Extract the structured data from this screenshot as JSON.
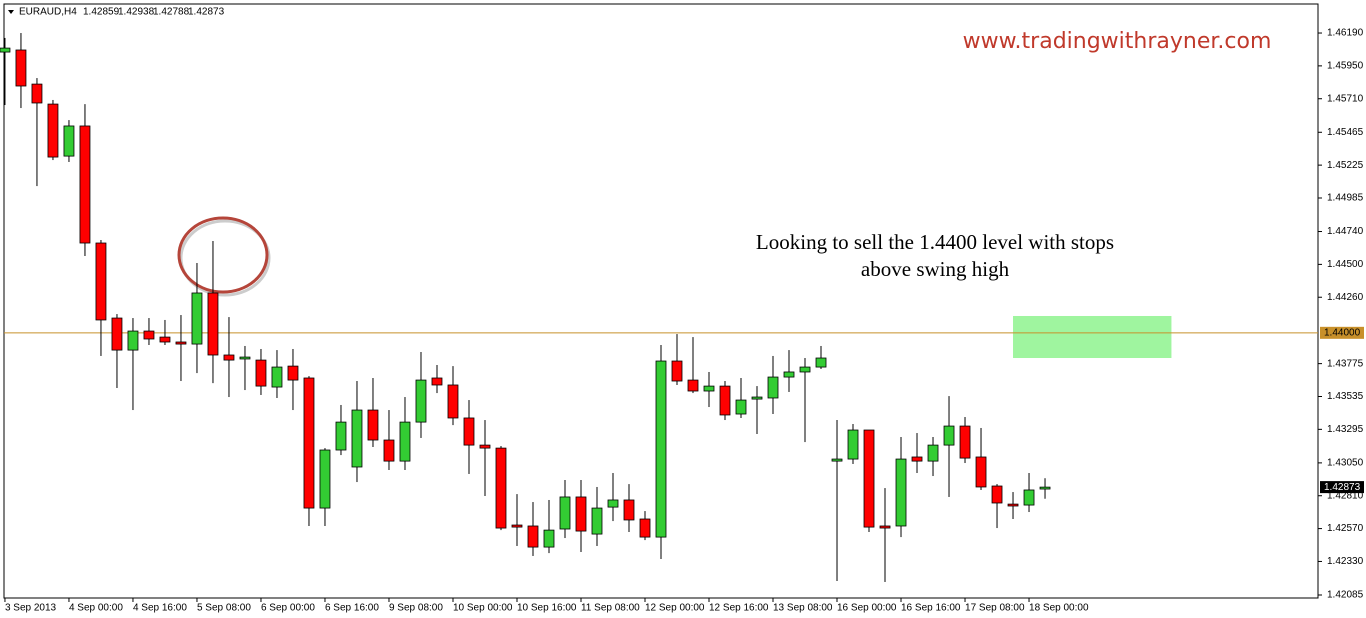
{
  "chart_data": {
    "type": "candlestick",
    "symbol": "EURAUD,H4",
    "watermark": "www.tradingwithrayner.com",
    "annotation": [
      "Looking to sell the 1.4400 level with stops",
      "above swing high"
    ],
    "bull_color": "#33cc33",
    "bear_color": "#ff0000",
    "open": [
      1.46051,
      1.46066,
      1.45817,
      1.45671,
      1.45291,
      1.45511,
      1.44656,
      1.44108,
      1.43874,
      1.44013,
      1.43969,
      1.43933,
      1.43918,
      1.44291,
      1.43838,
      1.43809,
      1.43801,
      1.43604,
      1.43757,
      1.4367,
      1.4272,
      1.43144,
      1.4302,
      1.43436,
      1.43217,
      1.43063,
      1.43348,
      1.4367,
      1.43619,
      1.43378,
      1.4318,
      1.43158,
      1.42596,
      1.42589,
      1.42435,
      1.42567,
      1.42801,
      1.4253,
      1.42727,
      1.42779,
      1.4264,
      1.42508,
      1.43794,
      1.43655,
      1.43575,
      1.43611,
      1.43407,
      1.43516,
      1.43524,
      1.43677,
      1.43714,
      1.4375,
      1.43063,
      1.43078,
      1.4329,
      1.42589,
      1.42589,
      1.43093,
      1.43063,
      1.4318,
      1.43319,
      1.43093,
      1.42881,
      1.42749,
      1.42742,
      1.42859
    ],
    "high": [
      1.46154,
      1.4619,
      1.45861,
      1.45701,
      1.45554,
      1.45671,
      1.44678,
      1.44137,
      1.44108,
      1.44108,
      1.44094,
      1.4413,
      1.4451,
      1.44671,
      1.44115,
      1.43904,
      1.43882,
      1.43874,
      1.43882,
      1.43684,
      1.43158,
      1.43473,
      1.43648,
      1.4367,
      1.43436,
      1.43531,
      1.4386,
      1.43765,
      1.43757,
      1.43509,
      1.43363,
      1.43173,
      1.42822,
      1.42764,
      1.42779,
      1.42925,
      1.42925,
      1.42874,
      1.42976,
      1.42895,
      1.42698,
      1.43911,
      1.43991,
      1.43969,
      1.43714,
      1.43648,
      1.4367,
      1.43611,
      1.43831,
      1.43874,
      1.43816,
      1.43904,
      1.43363,
      1.43334,
      1.4329,
      1.42866,
      1.43239,
      1.43268,
      1.43239,
      1.43538,
      1.43385,
      1.43305,
      1.42895,
      1.42837,
      1.42976,
      1.42938
    ],
    "low": [
      1.45664,
      1.45642,
      1.45072,
      1.45262,
      1.45248,
      1.44561,
      1.43831,
      1.43597,
      1.43436,
      1.43911,
      1.43911,
      1.43648,
      1.43706,
      1.43633,
      1.43531,
      1.43582,
      1.43546,
      1.43524,
      1.43436,
      1.42589,
      1.42589,
      1.43107,
      1.4291,
      1.43166,
      1.42998,
      1.42998,
      1.43232,
      1.4356,
      1.43326,
      1.42969,
      1.42808,
      1.42559,
      1.42443,
      1.4237,
      1.42391,
      1.42501,
      1.42399,
      1.42443,
      1.42625,
      1.42545,
      1.42486,
      1.42348,
      1.43619,
      1.4356,
      1.43458,
      1.43363,
      1.43378,
      1.43261,
      1.43407,
      1.43568,
      1.43202,
      1.43736,
      1.42187,
      1.43042,
      1.42545,
      1.4218,
      1.42508,
      1.42976,
      1.42954,
      1.42801,
      1.43049,
      1.42852,
      1.42574,
      1.4264,
      1.42691,
      1.42788
    ],
    "close": [
      1.4608,
      1.45803,
      1.45679,
      1.45284,
      1.45511,
      1.44656,
      1.44094,
      1.43874,
      1.44013,
      1.43955,
      1.43933,
      1.43918,
      1.44291,
      1.43838,
      1.43801,
      1.43823,
      1.43611,
      1.4375,
      1.43655,
      1.4272,
      1.43144,
      1.43348,
      1.43436,
      1.43217,
      1.43063,
      1.43348,
      1.43655,
      1.43619,
      1.43378,
      1.4318,
      1.43158,
      1.42574,
      1.42581,
      1.42435,
      1.42559,
      1.42801,
      1.42552,
      1.4272,
      1.42779,
      1.42633,
      1.42508,
      1.43794,
      1.43648,
      1.43575,
      1.43611,
      1.434,
      1.43509,
      1.43531,
      1.43677,
      1.43714,
      1.4375,
      1.43816,
      1.43078,
      1.4329,
      1.42581,
      1.42574,
      1.43078,
      1.43063,
      1.4318,
      1.43319,
      1.43085,
      1.42874,
      1.42757,
      1.42735,
      1.42852,
      1.42873
    ],
    "level": {
      "value": 1.44,
      "label": "1.44000",
      "color": "#c8902a"
    },
    "zone": {
      "x": [
        63.0,
        72.9
      ],
      "y": [
        1.43816,
        1.44123
      ],
      "color": "#9ff59f"
    },
    "xlim": [
      -0.06,
      82.06
    ],
    "ylim": [
      1.42063,
      1.46402
    ],
    "xticks": [
      {
        "value": 0,
        "label": "3 Sep 2013"
      },
      {
        "value": 4,
        "label": "4 Sep 00:00"
      },
      {
        "value": 8,
        "label": "4 Sep 16:00"
      },
      {
        "value": 12,
        "label": "5 Sep 08:00"
      },
      {
        "value": 16,
        "label": "6 Sep 00:00"
      },
      {
        "value": 20,
        "label": "6 Sep 16:00"
      },
      {
        "value": 24,
        "label": "9 Sep 08:00"
      },
      {
        "value": 28,
        "label": "10 Sep 00:00"
      },
      {
        "value": 32,
        "label": "10 Sep 16:00"
      },
      {
        "value": 36,
        "label": "11 Sep 08:00"
      },
      {
        "value": 40,
        "label": "12 Sep 00:00"
      },
      {
        "value": 44,
        "label": "12 Sep 16:00"
      },
      {
        "value": 48,
        "label": "13 Sep 08:00"
      },
      {
        "value": 52,
        "label": "16 Sep 00:00"
      },
      {
        "value": 56,
        "label": "16 Sep 16:00"
      },
      {
        "value": 60,
        "label": "17 Sep 08:00"
      },
      {
        "value": 64,
        "label": "18 Sep 00:00"
      }
    ],
    "yticks": [
      {
        "value": 1.4619,
        "label": "1.46190"
      },
      {
        "value": 1.4595,
        "label": "1.45950"
      },
      {
        "value": 1.4571,
        "label": "1.45710"
      },
      {
        "value": 1.45465,
        "label": "1.45465"
      },
      {
        "value": 1.45225,
        "label": "1.45225"
      },
      {
        "value": 1.44985,
        "label": "1.44985"
      },
      {
        "value": 1.4474,
        "label": "1.44740"
      },
      {
        "value": 1.445,
        "label": "1.44500"
      },
      {
        "value": 1.4426,
        "label": "1.44260"
      },
      {
        "value": 1.43775,
        "label": "1.43775"
      },
      {
        "value": 1.43535,
        "label": "1.43535"
      },
      {
        "value": 1.43295,
        "label": "1.43295"
      },
      {
        "value": 1.4305,
        "label": "1.43050"
      },
      {
        "value": 1.4281,
        "label": "1.42810"
      },
      {
        "value": 1.4257,
        "label": "1.42570"
      },
      {
        "value": 1.4233,
        "label": "1.42330"
      },
      {
        "value": 1.42085,
        "label": "1.42085"
      }
    ]
  }
}
